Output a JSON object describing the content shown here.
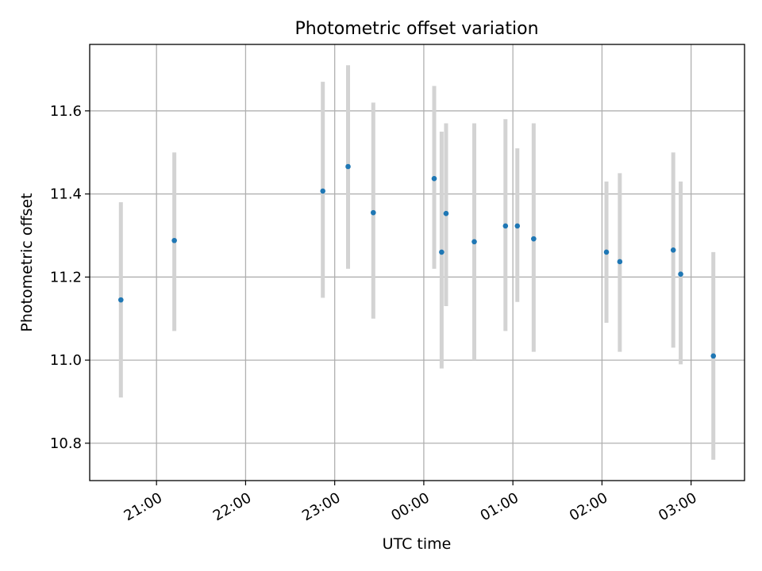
{
  "chart_data": {
    "type": "scatter",
    "title": "Photometric offset variation",
    "xlabel": "UTC time",
    "ylabel": "Photometric offset",
    "grid": true,
    "xlim": [
      "20:15",
      "03:36"
    ],
    "ylim": [
      10.71,
      11.76
    ],
    "x_ticks": [
      "21:00",
      "22:00",
      "23:00",
      "00:00",
      "01:00",
      "02:00",
      "03:00"
    ],
    "y_ticks": [
      "10.8",
      "11.0",
      "11.2",
      "11.4",
      "11.6"
    ],
    "colors": {
      "point": "#1f77b4",
      "errorbar": "#d3d3d3",
      "grid": "#b0b0b0"
    },
    "points": [
      {
        "x": "20:36",
        "y": 11.145,
        "yerr_low": 10.91,
        "yerr_high": 11.38
      },
      {
        "x": "21:12",
        "y": 11.288,
        "yerr_low": 11.07,
        "yerr_high": 11.5
      },
      {
        "x": "22:52",
        "y": 11.407,
        "yerr_low": 11.15,
        "yerr_high": 11.67
      },
      {
        "x": "23:09",
        "y": 11.466,
        "yerr_low": 11.22,
        "yerr_high": 11.71
      },
      {
        "x": "23:26",
        "y": 11.355,
        "yerr_low": 11.1,
        "yerr_high": 11.62
      },
      {
        "x": "00:07",
        "y": 11.437,
        "yerr_low": 11.22,
        "yerr_high": 11.66
      },
      {
        "x": "00:12",
        "y": 11.26,
        "yerr_low": 10.98,
        "yerr_high": 11.55
      },
      {
        "x": "00:15",
        "y": 11.353,
        "yerr_low": 11.13,
        "yerr_high": 11.57
      },
      {
        "x": "00:34",
        "y": 11.285,
        "yerr_low": 11.0,
        "yerr_high": 11.57
      },
      {
        "x": "00:55",
        "y": 11.323,
        "yerr_low": 11.07,
        "yerr_high": 11.58
      },
      {
        "x": "01:03",
        "y": 11.323,
        "yerr_low": 11.14,
        "yerr_high": 11.51
      },
      {
        "x": "01:14",
        "y": 11.292,
        "yerr_low": 11.02,
        "yerr_high": 11.57
      },
      {
        "x": "02:03",
        "y": 11.26,
        "yerr_low": 11.09,
        "yerr_high": 11.43
      },
      {
        "x": "02:12",
        "y": 11.237,
        "yerr_low": 11.02,
        "yerr_high": 11.45
      },
      {
        "x": "02:48",
        "y": 11.265,
        "yerr_low": 11.03,
        "yerr_high": 11.5
      },
      {
        "x": "02:53",
        "y": 11.207,
        "yerr_low": 10.99,
        "yerr_high": 11.43
      },
      {
        "x": "03:15",
        "y": 11.01,
        "yerr_low": 10.76,
        "yerr_high": 11.26
      }
    ]
  }
}
